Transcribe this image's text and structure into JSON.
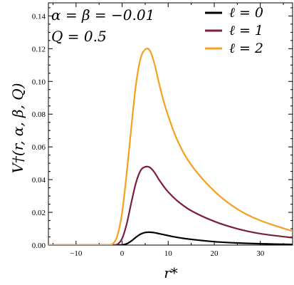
{
  "chart_data": {
    "type": "line",
    "title": "",
    "xlabel": "r*",
    "ylabel": "V†(r, α, β, Q)",
    "xlim": [
      -16,
      37
    ],
    "ylim": [
      0,
      0.148
    ],
    "x_ticks": [
      -10,
      0,
      10,
      20,
      30
    ],
    "x_tick_labels": [
      "−10",
      "0",
      "10",
      "20",
      "30"
    ],
    "y_ticks": [
      0,
      0.02,
      0.04,
      0.06,
      0.08,
      0.1,
      0.12,
      0.14
    ],
    "y_tick_labels": [
      "0.00",
      "0.02",
      "0.04",
      "0.06",
      "0.08",
      "0.10",
      "0.12",
      "0.14"
    ],
    "annotations": [
      "α = β = −0.01",
      "Q = 0.5"
    ],
    "legend_position": "top-right",
    "grid": false,
    "series": [
      {
        "name": "ℓ = 0",
        "color": "#000000",
        "x": [
          -1,
          0,
          1,
          2,
          3,
          4,
          5,
          6,
          7,
          8,
          10,
          12,
          15,
          20,
          25,
          30,
          37
        ],
        "y": [
          0,
          0.0001,
          0.0008,
          0.0025,
          0.0048,
          0.0067,
          0.0077,
          0.0079,
          0.0076,
          0.007,
          0.0058,
          0.0047,
          0.0035,
          0.0021,
          0.0013,
          0.0008,
          0.0004
        ]
      },
      {
        "name": "ℓ = 1",
        "color": "#7b1f3a",
        "x": [
          -2,
          -1,
          0,
          1,
          2,
          3,
          4,
          5,
          6,
          7,
          8,
          9,
          10,
          12,
          15,
          20,
          25,
          30,
          37
        ],
        "y": [
          0,
          0.0005,
          0.004,
          0.013,
          0.026,
          0.038,
          0.0455,
          0.0478,
          0.0475,
          0.0445,
          0.04,
          0.036,
          0.0325,
          0.027,
          0.021,
          0.0145,
          0.01,
          0.007,
          0.0045
        ]
      },
      {
        "name": "ℓ = 2",
        "color": "#f5a021",
        "x": [
          -3,
          -2,
          -1,
          0,
          1,
          2,
          3,
          4,
          5,
          6,
          7,
          8,
          9,
          10,
          12,
          15,
          20,
          25,
          30,
          37
        ],
        "y": [
          0,
          0.0008,
          0.006,
          0.02,
          0.044,
          0.072,
          0.098,
          0.114,
          0.1195,
          0.119,
          0.111,
          0.099,
          0.088,
          0.079,
          0.064,
          0.049,
          0.033,
          0.022,
          0.015,
          0.0085
        ]
      }
    ]
  }
}
